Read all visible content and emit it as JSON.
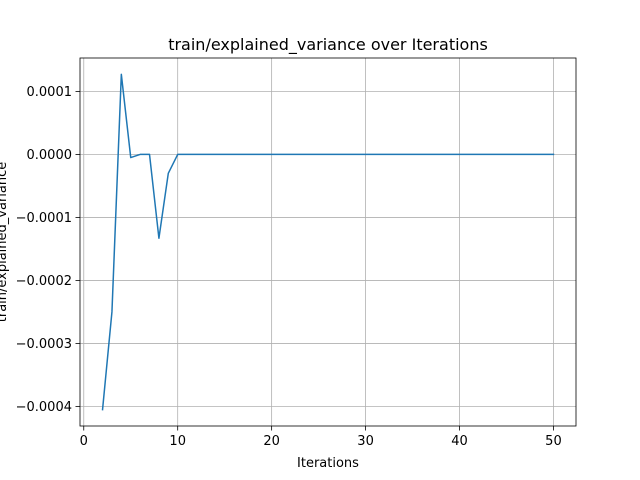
{
  "chart_data": {
    "type": "line",
    "title": "train/explained_variance over Iterations",
    "xlabel": "Iterations",
    "ylabel": "train/explained_variance",
    "xlim": [
      -0.4,
      52.4
    ],
    "ylim": [
      -0.000431,
      0.000153
    ],
    "grid": true,
    "x_ticks": [
      {
        "value": 0,
        "label": "0"
      },
      {
        "value": 10,
        "label": "10"
      },
      {
        "value": 20,
        "label": "20"
      },
      {
        "value": 30,
        "label": "30"
      },
      {
        "value": 40,
        "label": "40"
      },
      {
        "value": 50,
        "label": "50"
      }
    ],
    "y_ticks": [
      {
        "value": 0.0001,
        "label": "0.0001"
      },
      {
        "value": 0.0,
        "label": "0.0000"
      },
      {
        "value": -0.0001,
        "label": "−0.0001"
      },
      {
        "value": -0.0002,
        "label": "−0.0002"
      },
      {
        "value": -0.0003,
        "label": "−0.0003"
      },
      {
        "value": -0.0004,
        "label": "−0.0004"
      }
    ],
    "series": [
      {
        "color": "#1f77b4",
        "x": [
          2,
          3,
          4,
          5,
          6,
          7,
          8,
          9,
          10,
          11,
          12,
          13,
          14,
          15,
          16,
          17,
          18,
          19,
          20,
          21,
          22,
          23,
          24,
          25,
          26,
          27,
          28,
          29,
          30,
          31,
          32,
          33,
          34,
          35,
          36,
          37,
          38,
          39,
          40,
          41,
          42,
          43,
          44,
          45,
          46,
          47,
          48,
          49,
          50
        ],
        "y": [
          -0.000405,
          -0.00025,
          0.000127,
          -5e-06,
          0.0,
          0.0,
          -0.000133,
          -3e-05,
          0.0,
          0.0,
          0.0,
          0.0,
          0.0,
          0.0,
          0.0,
          0.0,
          0.0,
          0.0,
          0.0,
          0.0,
          0.0,
          0.0,
          0.0,
          0.0,
          0.0,
          0.0,
          0.0,
          0.0,
          0.0,
          0.0,
          0.0,
          0.0,
          0.0,
          0.0,
          0.0,
          0.0,
          0.0,
          0.0,
          0.0,
          0.0,
          0.0,
          0.0,
          0.0,
          0.0,
          0.0,
          0.0,
          0.0,
          0.0,
          0.0
        ]
      }
    ]
  }
}
